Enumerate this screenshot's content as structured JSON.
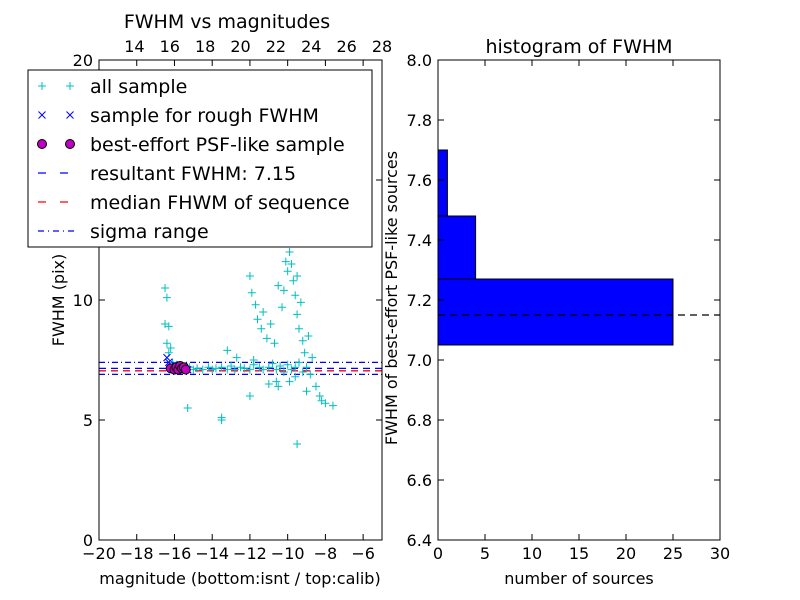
{
  "colors": {
    "all_sample": "#00bfbf",
    "rough_sample": "#0000ff",
    "psf_sample_fill": "#bf00bf",
    "resultant_line": "#0000ff",
    "median_line": "#ff0000",
    "sigma_line": "#0000ff",
    "histogram_bar": "#0000ff",
    "axes": "#000000"
  },
  "chart_data": [
    {
      "type": "scatter",
      "title": "FWHM vs magnitudes",
      "xlabel": "magnitude (bottom:isnt / top:calib)",
      "ylabel": "FWHM (pix)",
      "xlim": [
        -20,
        -5
      ],
      "ylim": [
        0,
        20
      ],
      "xticks": [
        "−20",
        "−18",
        "−16",
        "−14",
        "−12",
        "−10",
        "−8",
        "−6"
      ],
      "xtick_values": [
        -20,
        -18,
        -16,
        -14,
        -12,
        -10,
        -8,
        -6
      ],
      "yticks": [
        "0",
        "5",
        "10",
        "15",
        "20"
      ],
      "ytick_values": [
        0,
        5,
        10,
        15,
        20
      ],
      "top_xlim": [
        12,
        28
      ],
      "top_xticks": [
        "14",
        "16",
        "18",
        "20",
        "22",
        "24",
        "26",
        "28"
      ],
      "top_xtick_values": [
        14,
        16,
        18,
        20,
        22,
        24,
        26,
        28
      ],
      "legend": {
        "placement": "upper-left",
        "entries": [
          {
            "label": "all sample",
            "marker": "plus",
            "color": "#00bfbf"
          },
          {
            "label": "sample for rough FWHM",
            "marker": "x",
            "color": "#0000ff"
          },
          {
            "label": "best-effort PSF-like sample",
            "marker": "circle",
            "color": "#bf00bf"
          },
          {
            "label": "resultant FWHM: 7.15",
            "marker": "dashed",
            "color": "#0000ff"
          },
          {
            "label": "median FHWM of sequence",
            "marker": "dashed",
            "color": "#ff0000"
          },
          {
            "label": "sigma range",
            "marker": "dashdot",
            "color": "#0000ff"
          }
        ]
      },
      "hlines": {
        "resultant_fwhm": 7.15,
        "median_fwhm": 7.05,
        "sigma_range": [
          6.9,
          7.4
        ]
      },
      "series": [
        {
          "name": "all sample",
          "points": [
            [
              -16.5,
              10.5
            ],
            [
              -16.4,
              10.1
            ],
            [
              -16.5,
              9.0
            ],
            [
              -16.3,
              8.9
            ],
            [
              -16.4,
              8.2
            ],
            [
              -16.2,
              8.0
            ],
            [
              -16.3,
              7.8
            ],
            [
              -16.1,
              7.4
            ],
            [
              -15.9,
              7.3
            ],
            [
              -15.6,
              7.2
            ],
            [
              -15.4,
              7.1
            ],
            [
              -15.2,
              7.2
            ],
            [
              -15.0,
              7.1
            ],
            [
              -14.8,
              7.15
            ],
            [
              -14.5,
              7.1
            ],
            [
              -14.2,
              7.2
            ],
            [
              -14.0,
              7.1
            ],
            [
              -13.8,
              7.15
            ],
            [
              -13.5,
              7.2
            ],
            [
              -13.2,
              7.1
            ],
            [
              -13.0,
              7.25
            ],
            [
              -12.8,
              7.1
            ],
            [
              -12.5,
              7.2
            ],
            [
              -12.3,
              7.15
            ],
            [
              -12.0,
              7.1
            ],
            [
              -11.8,
              7.3
            ],
            [
              -11.5,
              7.2
            ],
            [
              -11.3,
              7.1
            ],
            [
              -11.0,
              7.2
            ],
            [
              -10.8,
              7.35
            ],
            [
              -10.6,
              7.1
            ],
            [
              -10.4,
              7.25
            ],
            [
              -10.2,
              7.0
            ],
            [
              -10.0,
              7.3
            ],
            [
              -9.8,
              7.1
            ],
            [
              -9.6,
              7.2
            ],
            [
              -9.4,
              7.4
            ],
            [
              -9.2,
              7.0
            ],
            [
              -9.0,
              7.2
            ],
            [
              -8.8,
              6.9
            ],
            [
              -15.3,
              5.5
            ],
            [
              -13.5,
              5.0
            ],
            [
              -13.5,
              5.1
            ],
            [
              -13.2,
              7.9
            ],
            [
              -12.7,
              7.6
            ],
            [
              -12.0,
              11.0
            ],
            [
              -11.9,
              10.3
            ],
            [
              -11.7,
              9.8
            ],
            [
              -11.6,
              9.2
            ],
            [
              -11.4,
              8.8
            ],
            [
              -11.3,
              9.5
            ],
            [
              -11.1,
              8.4
            ],
            [
              -10.9,
              9.0
            ],
            [
              -10.7,
              8.2
            ],
            [
              -10.5,
              10.6
            ],
            [
              -10.3,
              9.7
            ],
            [
              -10.1,
              11.6
            ],
            [
              -10.0,
              11.2
            ],
            [
              -9.9,
              12.0
            ],
            [
              -9.8,
              11.5
            ],
            [
              -9.7,
              10.8
            ],
            [
              -9.6,
              10.2
            ],
            [
              -9.5,
              9.4
            ],
            [
              -9.4,
              8.8
            ],
            [
              -9.3,
              9.9
            ],
            [
              -9.2,
              8.3
            ],
            [
              -9.1,
              7.8
            ],
            [
              -8.9,
              8.5
            ],
            [
              -8.7,
              7.6
            ],
            [
              -8.5,
              6.4
            ],
            [
              -8.3,
              6.0
            ],
            [
              -8.0,
              5.7
            ],
            [
              -7.6,
              5.6
            ],
            [
              -8.2,
              5.8
            ],
            [
              -9.0,
              6.2
            ],
            [
              -9.5,
              11.0
            ],
            [
              -10.2,
              10.4
            ],
            [
              -11.8,
              7.5
            ],
            [
              -11.0,
              6.5
            ],
            [
              -10.5,
              6.4
            ],
            [
              -12.0,
              6.0
            ],
            [
              -9.5,
              4.0
            ],
            [
              -9.6,
              6.8
            ],
            [
              -10.6,
              6.6
            ],
            [
              -9.9,
              6.6
            ]
          ]
        },
        {
          "name": "sample for rough FWHM",
          "points": [
            [
              -16.4,
              7.6
            ],
            [
              -16.3,
              7.4
            ],
            [
              -16.1,
              7.2
            ],
            [
              -15.9,
              7.25
            ],
            [
              -15.7,
              7.15
            ],
            [
              -15.5,
              7.2
            ],
            [
              -15.3,
              7.1
            ],
            [
              -16.0,
              7.3
            ]
          ]
        },
        {
          "name": "best-effort PSF-like sample",
          "points": [
            [
              -16.2,
              7.15
            ],
            [
              -16.0,
              7.1
            ],
            [
              -15.9,
              7.2
            ],
            [
              -15.8,
              7.1
            ],
            [
              -15.7,
              7.25
            ],
            [
              -15.6,
              7.15
            ],
            [
              -15.5,
              7.2
            ],
            [
              -15.4,
              7.1
            ]
          ]
        }
      ]
    },
    {
      "type": "bar",
      "orientation": "horizontal",
      "title": "histogram of FWHM",
      "xlabel": "number of sources",
      "ylabel": "FWHM of best-effort PSF-like sources",
      "xlim": [
        0,
        30
      ],
      "ylim": [
        6.4,
        8.0
      ],
      "xticks": [
        "0",
        "5",
        "10",
        "15",
        "20",
        "25",
        "30"
      ],
      "xtick_values": [
        0,
        5,
        10,
        15,
        20,
        25,
        30
      ],
      "yticks": [
        "6.4",
        "6.6",
        "6.8",
        "7.0",
        "7.2",
        "7.4",
        "7.6",
        "7.8",
        "8.0"
      ],
      "ytick_values": [
        6.4,
        6.6,
        6.8,
        7.0,
        7.2,
        7.4,
        7.6,
        7.8,
        8.0
      ],
      "bins": [
        {
          "from": 7.05,
          "to": 7.27,
          "count": 25
        },
        {
          "from": 7.27,
          "to": 7.48,
          "count": 4
        },
        {
          "from": 7.48,
          "to": 7.7,
          "count": 1
        }
      ],
      "hline": 7.15
    }
  ]
}
